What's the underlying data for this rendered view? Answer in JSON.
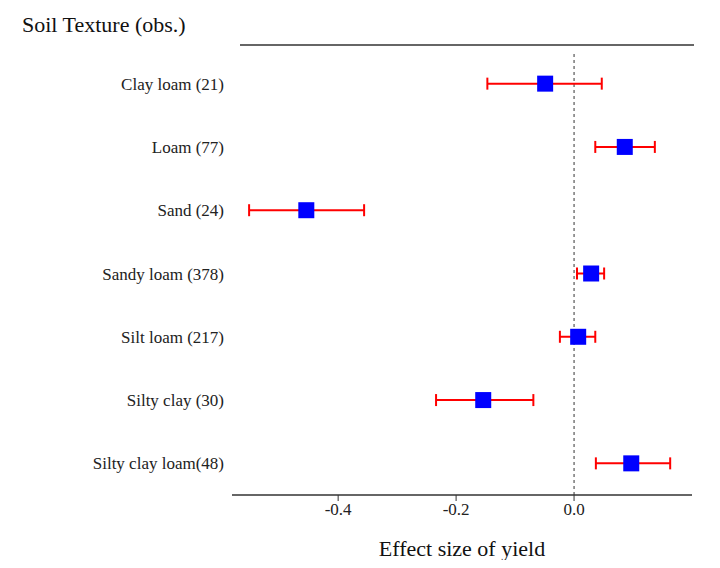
{
  "chart_data": {
    "type": "scatter",
    "title": "Soil Texture (obs.)",
    "xlabel": "Effect size of yield",
    "categories": [
      "Clay loam (21)",
      "Loam (77)",
      "Sand (24)",
      "Sandy loam (378)",
      "Silt loam (217)",
      "Silty clay (30)",
      "Silty clay loam(48)"
    ],
    "values": [
      -0.049,
      0.086,
      -0.454,
      0.029,
      0.007,
      -0.154,
      0.097
    ],
    "lower": [
      -0.147,
      0.036,
      -0.551,
      0.005,
      -0.024,
      -0.234,
      0.037
    ],
    "upper": [
      0.047,
      0.137,
      -0.356,
      0.051,
      0.036,
      -0.069,
      0.163
    ],
    "xlim": [
      -0.58,
      0.2
    ],
    "xticks": [
      -0.4,
      -0.2,
      {
        "value": 0,
        "label": "0.0"
      }
    ],
    "reference_line": 0,
    "color": "#0000ff",
    "marker": "square"
  }
}
